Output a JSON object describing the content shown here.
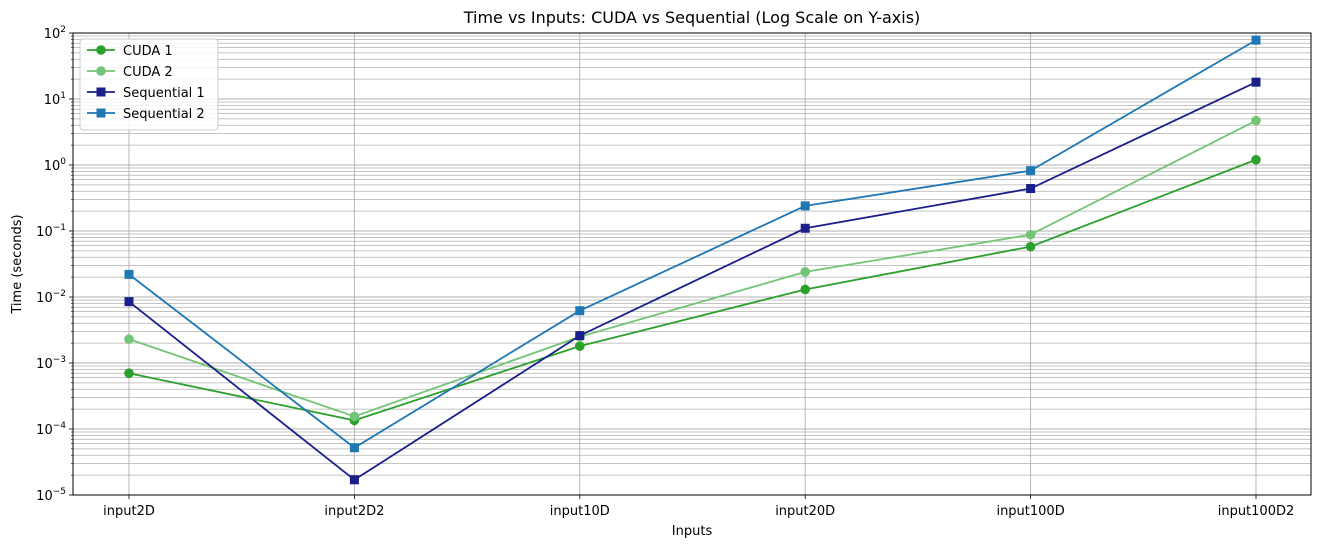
{
  "chart_data": {
    "type": "line",
    "title": "Time vs Inputs: CUDA vs Sequential (Log Scale on Y-axis)",
    "xlabel": "Inputs",
    "ylabel": "Time (seconds)",
    "yscale": "log",
    "ylim": [
      1e-05,
      100
    ],
    "grid": true,
    "legend_position": "top-left",
    "categories": [
      "input2D",
      "input2D2",
      "input10D",
      "input20D",
      "input100D",
      "input100D2"
    ],
    "y_ticks": [
      {
        "mant": "10",
        "exp": "−5"
      },
      {
        "mant": "10",
        "exp": "−4"
      },
      {
        "mant": "10",
        "exp": "−3"
      },
      {
        "mant": "10",
        "exp": "−2"
      },
      {
        "mant": "10",
        "exp": "−1"
      },
      {
        "mant": "10",
        "exp": "0"
      },
      {
        "mant": "10",
        "exp": "1"
      },
      {
        "mant": "10",
        "exp": "2"
      }
    ],
    "series": [
      {
        "name": "CUDA 1",
        "color": "#2ca02c",
        "marker": "circle",
        "values": [
          0.0007,
          0.000135,
          0.0018,
          0.013,
          0.058,
          1.2
        ]
      },
      {
        "name": "CUDA 2",
        "color": "#74c476",
        "marker": "circle",
        "values": [
          0.0023,
          0.000155,
          0.0025,
          0.024,
          0.088,
          4.7
        ]
      },
      {
        "name": "Sequential 1",
        "color": "#1a1f8a",
        "marker": "square",
        "values": [
          0.0085,
          1.7e-05,
          0.0026,
          0.11,
          0.44,
          18
        ]
      },
      {
        "name": "Sequential 2",
        "color": "#1f77b4",
        "marker": "square",
        "values": [
          0.022,
          5.2e-05,
          0.0062,
          0.24,
          0.82,
          78
        ]
      }
    ]
  }
}
